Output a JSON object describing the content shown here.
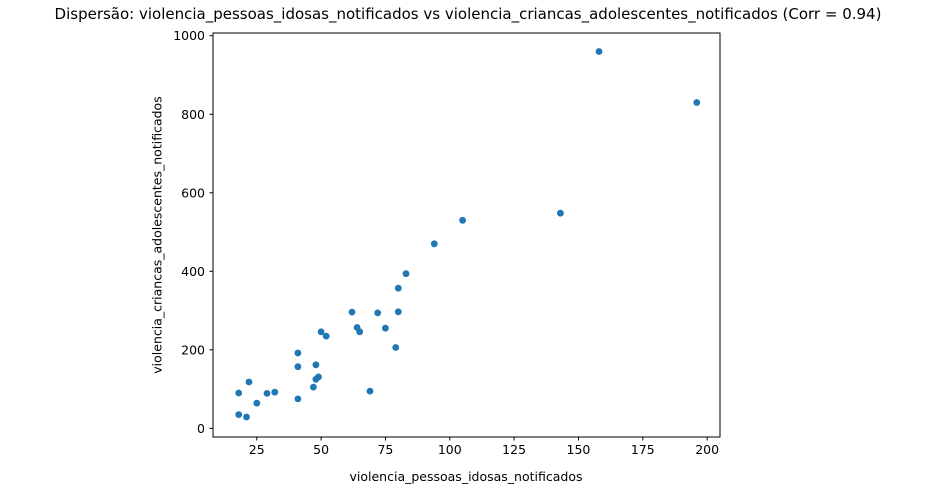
{
  "title": "Dispersão: violencia_pessoas_idosas_notificados vs violencia_criancas_adolescentes_notificados (Corr = 0.94)",
  "colors": {
    "marker": "#1f77b4",
    "axis": "#000000",
    "background": "#ffffff"
  },
  "chart_data": {
    "type": "scatter",
    "title": "Dispersão: violencia_pessoas_idosas_notificados vs violencia_criancas_adolescentes_notificados (Corr = 0.94)",
    "xlabel": "violencia_pessoas_idosas_notificados",
    "ylabel": "violencia_criancas_adolescentes_notificados",
    "correlation": 0.94,
    "xlim": [
      8,
      205
    ],
    "ylim": [
      -22,
      1007
    ],
    "xticks": [
      25,
      50,
      75,
      100,
      125,
      150,
      175,
      200
    ],
    "yticks": [
      0,
      200,
      400,
      600,
      800,
      1000
    ],
    "grid": false,
    "legend": false,
    "marker_color": "#1f77b4",
    "points": [
      [
        158,
        960
      ],
      [
        196,
        830
      ],
      [
        143,
        548
      ],
      [
        105,
        530
      ],
      [
        94,
        470
      ],
      [
        83,
        394
      ],
      [
        80,
        357
      ],
      [
        80,
        297
      ],
      [
        79,
        206
      ],
      [
        75,
        255
      ],
      [
        72,
        294
      ],
      [
        65,
        246
      ],
      [
        64,
        257
      ],
      [
        62,
        296
      ],
      [
        69,
        95
      ],
      [
        50,
        246
      ],
      [
        52,
        235
      ],
      [
        48,
        162
      ],
      [
        41,
        192
      ],
      [
        41,
        157
      ],
      [
        48,
        125
      ],
      [
        49,
        131
      ],
      [
        47,
        105
      ],
      [
        41,
        75
      ],
      [
        22,
        118
      ],
      [
        18,
        90
      ],
      [
        29,
        89
      ],
      [
        32,
        92
      ],
      [
        25,
        64
      ],
      [
        18,
        35
      ],
      [
        21,
        29
      ]
    ]
  }
}
